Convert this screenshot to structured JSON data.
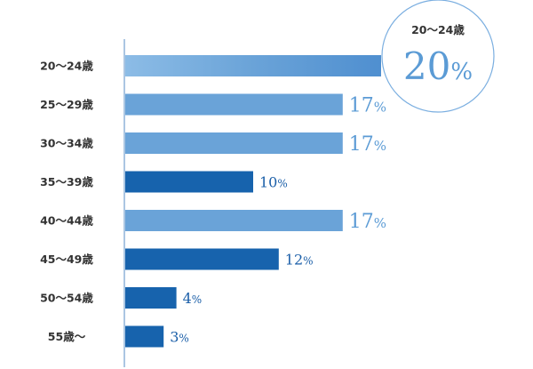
{
  "chart_data": {
    "type": "bar",
    "orientation": "horizontal",
    "title": "",
    "xlabel": "",
    "ylabel": "",
    "categories": [
      "20〜24歳",
      "25〜29歳",
      "30〜34歳",
      "35〜39歳",
      "40〜44歳",
      "45〜49歳",
      "50〜54歳",
      "55歳〜"
    ],
    "values": [
      20,
      17,
      17,
      10,
      17,
      12,
      4,
      3
    ],
    "value_labels": [
      "",
      "17",
      "17",
      "10",
      "17",
      "12",
      "4",
      "3"
    ],
    "unit": "%",
    "xlim": [
      0,
      20
    ],
    "grid": false,
    "legend": "none",
    "highlight_threshold": 15,
    "colors": {
      "highlight": "#6aa3d8",
      "highlight_light": "#8cbce6",
      "normal": "#1763ad",
      "label_highlight": "#5b9bd5",
      "label_normal": "#1a5ea8",
      "axis": "#8fb3d9",
      "callout_border": "#7aaee0"
    },
    "callout": {
      "category": "20〜24歳",
      "value": "20",
      "unit": "%"
    }
  }
}
